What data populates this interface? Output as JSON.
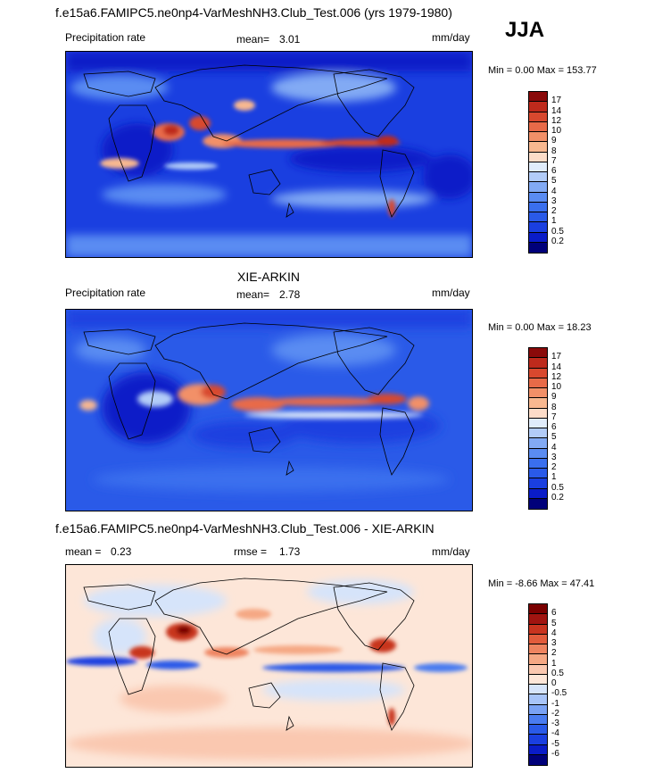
{
  "season": "JJA",
  "panels": [
    {
      "title": "f.e15a6.FAMIPC5.ne0np4-VarMeshNH3.Club_Test.006 (yrs 1979-1980)",
      "left_label": "Precipitation rate",
      "stat_label": "mean=",
      "stat_value": "3.01",
      "units": "mm/day",
      "minmax_text": "Min =   0.00 Max = 153.77",
      "colorbar_labels": [
        "17",
        "14",
        "12",
        "10",
        "9",
        "8",
        "7",
        "6",
        "5",
        "4",
        "3",
        "2",
        "1",
        "0.5",
        "0.2"
      ]
    },
    {
      "title": "XIE-ARKIN",
      "left_label": "Precipitation rate",
      "stat_label": "mean=",
      "stat_value": "2.78",
      "units": "mm/day",
      "minmax_text": "Min =   0.00 Max =  18.23",
      "colorbar_labels": [
        "17",
        "14",
        "12",
        "10",
        "9",
        "8",
        "7",
        "6",
        "5",
        "4",
        "3",
        "2",
        "1",
        "0.5",
        "0.2"
      ]
    },
    {
      "title": "f.e15a6.FAMIPC5.ne0np4-VarMeshNH3.Club_Test.006 - XIE-ARKIN",
      "left_label": "mean =",
      "left_value": "0.23",
      "stat_label": "rmse =",
      "stat_value": "1.73",
      "units": "mm/day",
      "minmax_text": "Min =  -8.66 Max =  47.41",
      "colorbar_labels": [
        "6",
        "5",
        "4",
        "3",
        "2",
        "1",
        "0.5",
        "0",
        "-0.5",
        "-1",
        "-2",
        "-3",
        "-4",
        "-5",
        "-6"
      ]
    }
  ],
  "chart_data": [
    {
      "type": "heatmap",
      "title": "f.e15a6.FAMIPC5.ne0np4-VarMeshNH3.Club_Test.006 (yrs 1979-1980)",
      "variable": "Precipitation rate",
      "units": "mm/day",
      "mean": 3.01,
      "min": 0.0,
      "max": 153.77,
      "levels": [
        0.2,
        0.5,
        1,
        2,
        3,
        4,
        5,
        6,
        7,
        8,
        9,
        10,
        12,
        14,
        17
      ],
      "colors": [
        "#00007a",
        "#0a1cc8",
        "#1a3fe0",
        "#2a5ae8",
        "#3a6fee",
        "#5a8cf2",
        "#82aaf4",
        "#b2ccf8",
        "#e0ecfb",
        "#fcdcc8",
        "#f8b890",
        "#f29068",
        "#e86a48",
        "#d8482e",
        "#be2a1c",
        "#8a0a0a"
      ]
    },
    {
      "type": "heatmap",
      "title": "XIE-ARKIN",
      "variable": "Precipitation rate",
      "units": "mm/day",
      "mean": 2.78,
      "min": 0.0,
      "max": 18.23,
      "levels": [
        0.2,
        0.5,
        1,
        2,
        3,
        4,
        5,
        6,
        7,
        8,
        9,
        10,
        12,
        14,
        17
      ],
      "colors": [
        "#00007a",
        "#0a1cc8",
        "#1a3fe0",
        "#2a5ae8",
        "#3a6fee",
        "#5a8cf2",
        "#82aaf4",
        "#b2ccf8",
        "#e0ecfb",
        "#fcdcc8",
        "#f8b890",
        "#f29068",
        "#e86a48",
        "#d8482e",
        "#be2a1c",
        "#8a0a0a"
      ]
    },
    {
      "type": "heatmap",
      "title": "f.e15a6.FAMIPC5.ne0np4-VarMeshNH3.Club_Test.006 - XIE-ARKIN",
      "units": "mm/day",
      "mean": 0.23,
      "rmse": 1.73,
      "min": -8.66,
      "max": 47.41,
      "levels": [
        -6,
        -5,
        -4,
        -3,
        -2,
        -1,
        -0.5,
        0,
        0.5,
        1,
        2,
        3,
        4,
        5,
        6
      ],
      "colors": [
        "#00007a",
        "#0a1cc8",
        "#1a3fe0",
        "#2a5ae8",
        "#4a7cf0",
        "#7aa2f4",
        "#a8c4f8",
        "#d6e4fa",
        "#fde6d8",
        "#fac8b0",
        "#f5a884",
        "#ee8460",
        "#e25c3c",
        "#c8341f",
        "#a01410",
        "#7a0000"
      ]
    }
  ]
}
